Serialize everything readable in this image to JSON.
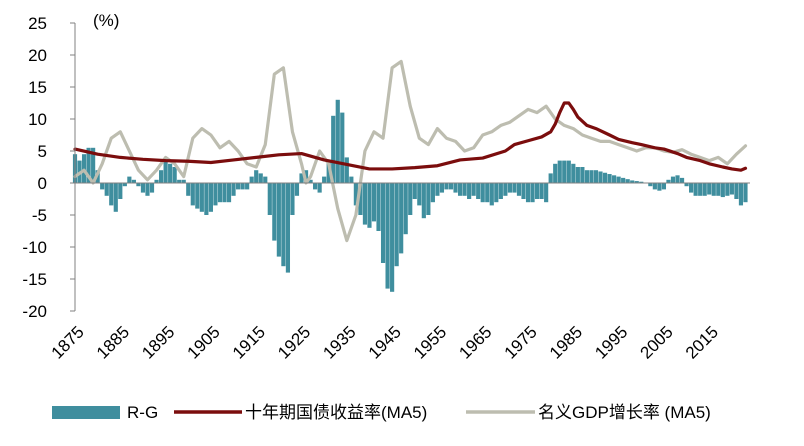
{
  "chart_data": {
    "type": "bar+line",
    "unit_label": "(%)",
    "ylim": [
      -20,
      25
    ],
    "yticks": [
      25,
      20,
      15,
      10,
      5,
      0,
      -5,
      -10,
      -15,
      -20
    ],
    "xlim": [
      1875,
      2024
    ],
    "xticks": [
      1875,
      1885,
      1895,
      1905,
      1915,
      1925,
      1935,
      1945,
      1955,
      1965,
      1975,
      1985,
      1995,
      2005,
      2015
    ],
    "grid": false,
    "legend_position": "bottom",
    "colors": {
      "bars": "#3F8E9E",
      "yield": "#7B0D0D",
      "gdp": "#BDBDB0",
      "axis": "#808080"
    },
    "series": [
      {
        "name": "R-G",
        "kind": "bar",
        "x": [
          1875,
          1876,
          1877,
          1878,
          1879,
          1880,
          1881,
          1882,
          1883,
          1884,
          1885,
          1886,
          1887,
          1888,
          1889,
          1890,
          1891,
          1892,
          1893,
          1894,
          1895,
          1896,
          1897,
          1898,
          1899,
          1900,
          1901,
          1902,
          1903,
          1904,
          1905,
          1906,
          1907,
          1908,
          1909,
          1910,
          1911,
          1912,
          1913,
          1914,
          1915,
          1916,
          1917,
          1918,
          1919,
          1920,
          1921,
          1922,
          1923,
          1924,
          1925,
          1926,
          1927,
          1928,
          1929,
          1930,
          1931,
          1932,
          1933,
          1934,
          1935,
          1936,
          1937,
          1938,
          1939,
          1940,
          1941,
          1942,
          1943,
          1944,
          1945,
          1946,
          1947,
          1948,
          1949,
          1950,
          1951,
          1952,
          1953,
          1954,
          1955,
          1956,
          1957,
          1958,
          1959,
          1960,
          1961,
          1962,
          1963,
          1964,
          1965,
          1966,
          1967,
          1968,
          1969,
          1970,
          1971,
          1972,
          1973,
          1974,
          1975,
          1976,
          1977,
          1978,
          1979,
          1980,
          1981,
          1982,
          1983,
          1984,
          1985,
          1986,
          1987,
          1988,
          1989,
          1990,
          1991,
          1992,
          1993,
          1994,
          1995,
          1996,
          1997,
          1998,
          1999,
          2000,
          2001,
          2002,
          2003,
          2004,
          2005,
          2006,
          2007,
          2008,
          2009,
          2010,
          2011,
          2012,
          2013,
          2014,
          2015,
          2016,
          2017,
          2018,
          2019,
          2020,
          2021,
          2022,
          2023
        ],
        "values": [
          4.5,
          3.5,
          4.5,
          5.5,
          5.5,
          2.0,
          -1.0,
          -2.0,
          -3.5,
          -4.5,
          -2.5,
          -0.5,
          1.0,
          0.5,
          -0.5,
          -1.5,
          -2.0,
          -1.5,
          0.5,
          2.0,
          3.5,
          3.0,
          2.5,
          0.5,
          0.5,
          -2.0,
          -3.5,
          -4.0,
          -4.5,
          -5.0,
          -4.5,
          -3.5,
          -3.0,
          -3.0,
          -3.0,
          -2.0,
          -1.0,
          -1.0,
          -1.0,
          1.0,
          2.0,
          1.5,
          1.0,
          -5.0,
          -9.0,
          -11.5,
          -13.0,
          -14.0,
          -5.0,
          -2.0,
          1.5,
          2.0,
          0.5,
          -1.0,
          -1.5,
          1.0,
          3.5,
          10.5,
          13.0,
          11.0,
          4.0,
          1.0,
          -3.5,
          -5.0,
          -6.5,
          -7.0,
          -6.0,
          -7.5,
          -12.5,
          -16.5,
          -17.0,
          -13.0,
          -11.0,
          -8.0,
          -5.0,
          -2.5,
          -3.5,
          -5.5,
          -5.0,
          -3.0,
          -2.0,
          -1.5,
          -1.0,
          -1.0,
          -1.5,
          -2.0,
          -2.0,
          -2.5,
          -2.0,
          -2.5,
          -3.0,
          -3.0,
          -3.5,
          -3.0,
          -2.5,
          -2.0,
          -1.5,
          -1.5,
          -2.0,
          -2.5,
          -3.0,
          -3.0,
          -2.5,
          -2.5,
          -3.0,
          1.5,
          3.0,
          3.5,
          3.5,
          3.5,
          3.0,
          2.5,
          2.5,
          2.0,
          2.0,
          2.0,
          1.8,
          1.6,
          1.4,
          1.2,
          1.0,
          0.8,
          0.6,
          0.4,
          0.3,
          0.2,
          0.0,
          -0.5,
          -1.0,
          -1.2,
          -1.0,
          0.5,
          1.0,
          1.2,
          0.8,
          -0.5,
          -1.5,
          -2.0,
          -2.0,
          -2.0,
          -1.8,
          -2.0,
          -2.0,
          -2.2,
          -2.0,
          -1.8,
          -2.5,
          -3.5,
          -3.0
        ],
        "color": "#3F8E9E"
      },
      {
        "name": "十年期国债收益率(MA5)",
        "kind": "line",
        "x": [
          1875,
          1880,
          1885,
          1890,
          1895,
          1900,
          1905,
          1910,
          1915,
          1920,
          1925,
          1930,
          1935,
          1940,
          1945,
          1950,
          1955,
          1960,
          1965,
          1970,
          1972,
          1975,
          1978,
          1980,
          1981,
          1982,
          1983,
          1984,
          1985,
          1986,
          1988,
          1990,
          1993,
          1995,
          1998,
          2000,
          2003,
          2005,
          2008,
          2010,
          2013,
          2015,
          2018,
          2020,
          2022,
          2023
        ],
        "values": [
          5.3,
          4.5,
          4.0,
          3.7,
          3.5,
          3.4,
          3.2,
          3.6,
          4.0,
          4.4,
          4.6,
          3.6,
          2.9,
          2.2,
          2.2,
          2.4,
          2.7,
          3.6,
          3.9,
          5.0,
          6.0,
          6.6,
          7.2,
          8.0,
          9.2,
          11.0,
          12.5,
          12.5,
          11.5,
          10.3,
          9.0,
          8.5,
          7.5,
          6.8,
          6.3,
          6.0,
          5.5,
          5.3,
          4.6,
          4.0,
          3.5,
          3.0,
          2.5,
          2.2,
          2.0,
          2.3
        ],
        "color": "#7B0D0D"
      },
      {
        "name": "名义GDP增长率 (MA5)",
        "kind": "line",
        "x": [
          1875,
          1877,
          1879,
          1881,
          1883,
          1885,
          1887,
          1889,
          1891,
          1893,
          1895,
          1897,
          1899,
          1901,
          1903,
          1905,
          1907,
          1909,
          1911,
          1913,
          1915,
          1917,
          1919,
          1921,
          1923,
          1925,
          1926,
          1927,
          1929,
          1931,
          1933,
          1935,
          1937,
          1939,
          1941,
          1943,
          1945,
          1947,
          1949,
          1951,
          1953,
          1955,
          1957,
          1959,
          1961,
          1963,
          1965,
          1967,
          1969,
          1971,
          1973,
          1975,
          1977,
          1979,
          1981,
          1983,
          1985,
          1987,
          1989,
          1991,
          1993,
          1995,
          1997,
          1999,
          2001,
          2003,
          2005,
          2007,
          2009,
          2011,
          2013,
          2015,
          2017,
          2019,
          2021,
          2023
        ],
        "values": [
          1.0,
          2.0,
          0.0,
          3.0,
          7.0,
          8.0,
          5.0,
          2.0,
          0.5,
          2.0,
          4.0,
          3.0,
          1.0,
          7.0,
          8.5,
          7.5,
          5.5,
          6.5,
          5.0,
          3.0,
          2.5,
          6.0,
          17.0,
          18.0,
          8.0,
          3.0,
          0.0,
          1.0,
          5.0,
          3.0,
          -4.0,
          -9.0,
          -5.0,
          5.0,
          8.0,
          7.0,
          18.0,
          19.0,
          12.0,
          7.0,
          6.0,
          8.5,
          7.0,
          6.5,
          5.0,
          5.5,
          7.5,
          8.0,
          9.0,
          9.5,
          10.5,
          11.5,
          11.0,
          12.0,
          10.0,
          9.0,
          8.5,
          7.5,
          7.0,
          6.5,
          6.5,
          6.0,
          5.5,
          5.0,
          5.5,
          5.5,
          5.0,
          4.8,
          5.2,
          4.5,
          4.0,
          3.5,
          4.0,
          3.0,
          4.5,
          5.8
        ],
        "color": "#BDBDB0"
      }
    ]
  }
}
